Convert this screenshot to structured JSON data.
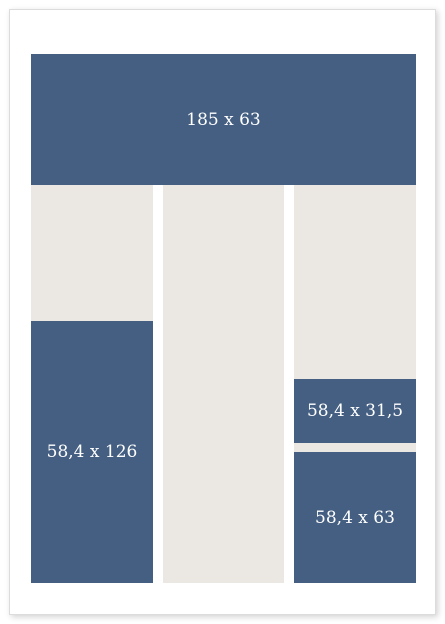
{
  "diagram": {
    "blocks": [
      {
        "id": "top",
        "label": "185 x 63"
      },
      {
        "id": "left",
        "label": "58,4 x 126"
      },
      {
        "id": "right-middle",
        "label": "58,4 x 31,5"
      },
      {
        "id": "right-bottom",
        "label": "58,4 x 63"
      }
    ],
    "colors": {
      "filled": "#445f82",
      "empty": "#ebe7e3",
      "text": "#ffffff"
    }
  }
}
